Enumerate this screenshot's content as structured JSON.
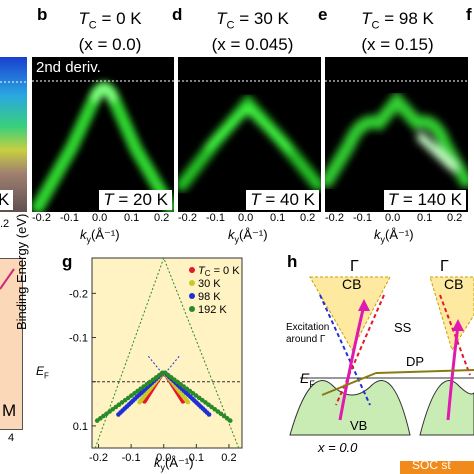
{
  "panels": {
    "b": {
      "letter": "b",
      "tc_line": "T_C = 0 K",
      "tc_sym": "T",
      "tc_sub": "C",
      "tc_val": " = 0 K",
      "x_line": "(x = 0.0)",
      "temp_sym": "T",
      "temp_val": " = 20 K",
      "deriv_label": "2nd deriv."
    },
    "d": {
      "letter": "d",
      "tc_sym": "T",
      "tc_sub": "C",
      "tc_val": " = 30 K",
      "x_line": "(x = 0.045)",
      "temp_sym": "T",
      "temp_val": " = 40 K"
    },
    "e": {
      "letter": "e",
      "tc_sym": "T",
      "tc_sub": "C",
      "tc_val": " = 98 K",
      "x_line": "(x = 0.15)",
      "temp_sym": "T",
      "temp_val": " = 140 K"
    },
    "f": {
      "letter": "f"
    },
    "a": {
      "temp_fragment": "K",
      "tick_right": ".2",
      "tick_bottom": "4",
      "label_M": "M"
    },
    "g": {
      "letter": "g",
      "ylabel": "Binding Energy (eV)",
      "ef_label": "E",
      "ef_sub": "F"
    },
    "h": {
      "letter": "h",
      "gamma": "Γ",
      "cb": "CB",
      "cb2": "CB",
      "ss": "SS",
      "dp": "DP",
      "vb": "VB",
      "ef_label": "E",
      "ef_sub": "F",
      "excitation_line1": "Excitation",
      "excitation_line2": "around Γ",
      "x_label": "x = 0.0",
      "soc_label": "SOC st"
    }
  },
  "k_axis": {
    "ticks": [
      "-0.2",
      "-0.1",
      "0.0",
      "0.1",
      "0.2"
    ],
    "label": "k",
    "label_sub": "y",
    "label_unit": "(Å⁻¹)"
  },
  "colors": {
    "arpes_green": "#39ff3a",
    "panel_bg": "#fff3c4",
    "cb_fill": "#fde9a0",
    "vb_fill": "#c9ecb5",
    "soc_bar": "#f08a1a",
    "red": "#e4172b",
    "yellow": "#c9c92a",
    "blue": "#1f2fd6",
    "green": "#2a8a2a"
  },
  "chart_data": {
    "type": "scatter",
    "xlabel": "k_y (Å⁻¹)",
    "ylabel": "Binding Energy (eV)",
    "xlim": [
      -0.22,
      0.24
    ],
    "ylim": [
      0.15,
      -0.28
    ],
    "y_ticks": [
      "-0.2",
      "-0.1",
      "E_F",
      "0.1"
    ],
    "x_ticks": [
      "-0.2",
      "-0.1",
      "0.0",
      "0.1",
      "0.2"
    ],
    "legend_position": "top-right",
    "series": [
      {
        "name": "T_C = 0 K",
        "label_sym": "T",
        "label_sub": "C",
        "label_val": " = 0 K",
        "color": "#e4172b",
        "slope": 2.6,
        "half_width": 0.055
      },
      {
        "name": "30 K",
        "label": "30 K",
        "color": "#c9c92a",
        "slope": 2.1,
        "half_width": 0.07
      },
      {
        "name": "98 K",
        "label": "98 K",
        "color": "#1f2fd6",
        "slope": 1.55,
        "half_width": 0.135
      },
      {
        "name": "192 K",
        "label": "192 K",
        "color": "#2a8a2a",
        "slope": 1.2,
        "half_width": 0.2
      }
    ]
  }
}
